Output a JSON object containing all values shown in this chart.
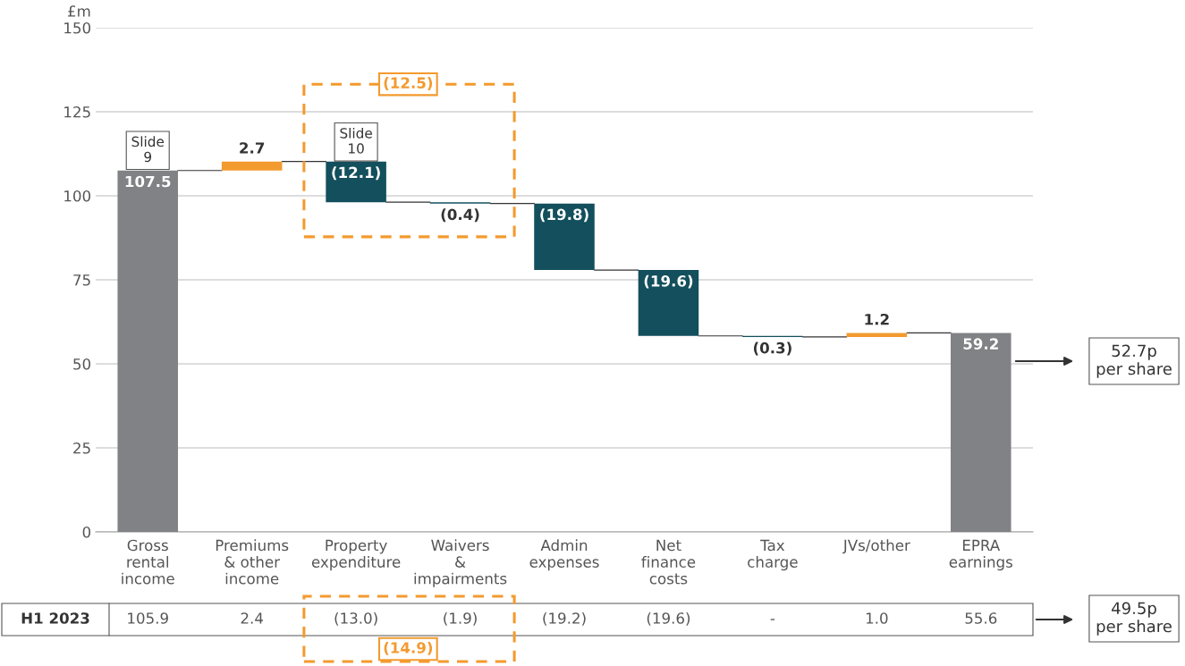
{
  "chart_data": {
    "type": "bar",
    "ylabel": "£m",
    "categories": [
      "Gross\nrental\nincome",
      "Premiums\n& other\nincome",
      "Property\nexpenditure",
      "Waivers\n&\nimpairments",
      "Admin\nexpenses",
      "Net\nfinance\ncosts",
      "Tax\ncharge",
      "JVs/other",
      "EPRA\nearnings"
    ],
    "values": [
      107.5,
      2.7,
      -12.1,
      -0.4,
      -19.8,
      -19.6,
      -0.3,
      1.2,
      59.2
    ],
    "base": [
      0,
      107.5,
      110.2,
      98.1,
      97.7,
      77.9,
      58.3,
      58.0,
      0
    ],
    "colors": [
      "#818285",
      "#f39a2e",
      "#134f5c",
      "#134f5c",
      "#134f5c",
      "#134f5c",
      "#134f5c",
      "#f39a2e",
      "#818285"
    ],
    "value_labels": [
      "107.5",
      "2.7",
      "(12.1)",
      "(0.4)",
      "(19.8)",
      "(19.6)",
      "(0.3)",
      "1.2",
      "59.2"
    ],
    "ylim": [
      0,
      150
    ],
    "yticks": [
      0,
      25,
      50,
      75,
      100,
      125,
      150
    ],
    "grid": "y",
    "annotations": [
      "Slide\n9",
      "Slide\n10",
      "(12.5)",
      "52.7p\nper share",
      "H1 2023",
      "105.9",
      "2.4",
      "(13.0)",
      "(1.9)",
      "(19.2)",
      "(19.6)",
      "-",
      "1.0",
      "55.6",
      "(14.9)",
      "49.5p\nper share"
    ]
  }
}
